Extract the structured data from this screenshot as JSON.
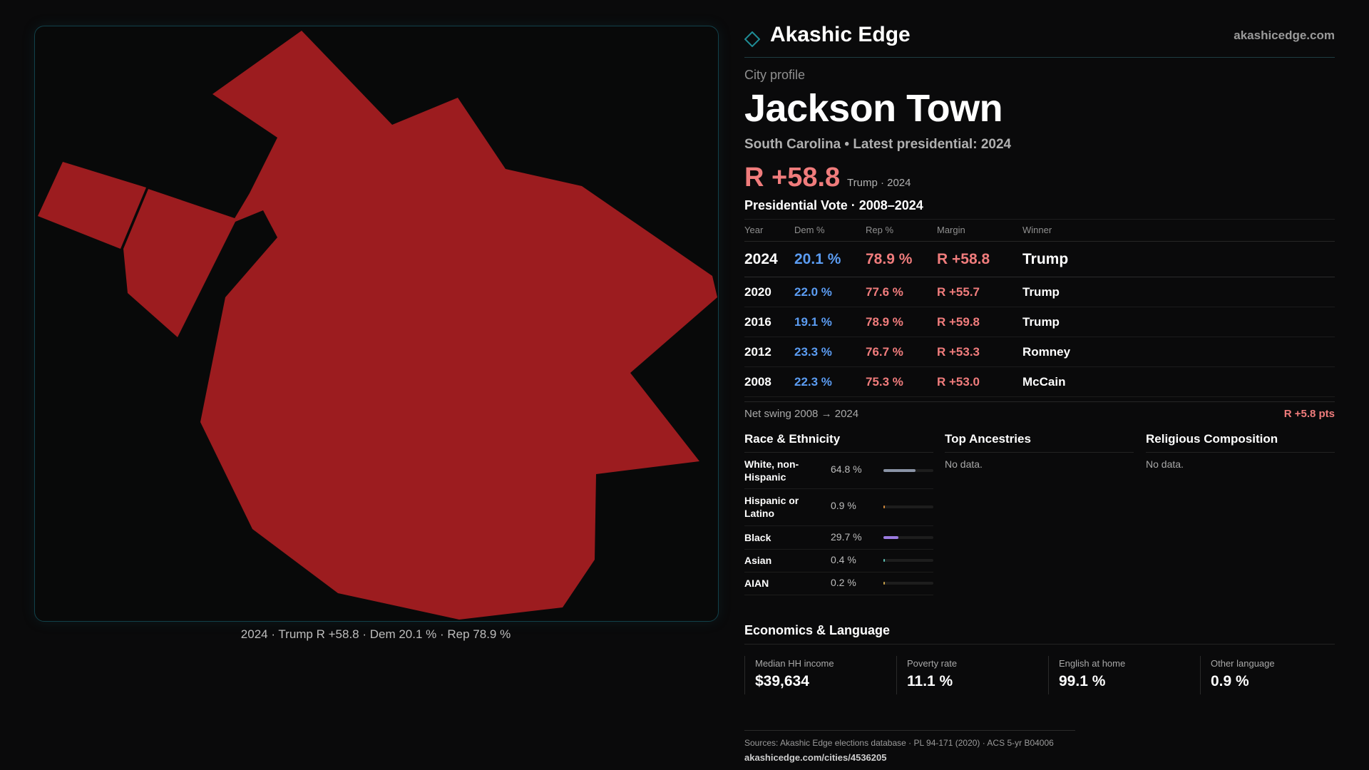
{
  "brand": {
    "name": "Akashic Edge",
    "url": "akashicedge.com"
  },
  "profile": {
    "label": "City profile",
    "city": "Jackson Town",
    "subline": "South Carolina • Latest presidential: 2024",
    "headline_margin": "R +58.8",
    "headline_note": "Trump · 2024"
  },
  "map": {
    "caption": "2024 · Trump R +58.8 · Dem 20.1 % · Rep 78.9 %",
    "fill_color": "#9c1c1f"
  },
  "vote_table": {
    "title": "Presidential Vote · 2008–2024",
    "headers": [
      "Year",
      "Dem %",
      "Rep %",
      "Margin",
      "Winner"
    ],
    "rows": [
      {
        "year": "2024",
        "dem": "20.1 %",
        "rep": "78.9 %",
        "margin": "R +58.8",
        "winner": "Trump"
      },
      {
        "year": "2020",
        "dem": "22.0 %",
        "rep": "77.6 %",
        "margin": "R +55.7",
        "winner": "Trump"
      },
      {
        "year": "2016",
        "dem": "19.1 %",
        "rep": "78.9 %",
        "margin": "R +59.8",
        "winner": "Trump"
      },
      {
        "year": "2012",
        "dem": "23.3 %",
        "rep": "76.7 %",
        "margin": "R +53.3",
        "winner": "Romney"
      },
      {
        "year": "2008",
        "dem": "22.3 %",
        "rep": "75.3 %",
        "margin": "R +53.0",
        "winner": "McCain"
      }
    ]
  },
  "swing": {
    "label": "Net swing 2008 → 2024",
    "value": "R +5.8 pts"
  },
  "race": {
    "title": "Race & Ethnicity",
    "rows": [
      {
        "label": "White, non-Hispanic",
        "pct": "64.8 %",
        "share": 0.648,
        "color": "#8a93a6"
      },
      {
        "label": "Hispanic or Latino",
        "pct": "0.9 %",
        "share": 0.009,
        "color": "#d48a3a"
      },
      {
        "label": "Black",
        "pct": "29.7 %",
        "share": 0.297,
        "color": "#9b7be0"
      },
      {
        "label": "Asian",
        "pct": "0.4 %",
        "share": 0.004,
        "color": "#5cc2b5"
      },
      {
        "label": "AIAN",
        "pct": "0.2 %",
        "share": 0.002,
        "color": "#c9a24a"
      }
    ]
  },
  "ancestries": {
    "title": "Top Ancestries",
    "empty": "No data."
  },
  "religion": {
    "title": "Religious Composition",
    "empty": "No data."
  },
  "economics": {
    "title": "Economics & Language",
    "cells": [
      {
        "label": "Median HH income",
        "value": "$39,634"
      },
      {
        "label": "Poverty rate",
        "value": "11.1 %"
      },
      {
        "label": "English at home",
        "value": "99.1 %"
      },
      {
        "label": "Other language",
        "value": "0.9 %"
      }
    ]
  },
  "sources": {
    "text": "Sources: Akashic Edge elections database · PL 94-171 (2020) · ACS 5-yr B04006",
    "url": "akashicedge.com/cities/4536205"
  }
}
